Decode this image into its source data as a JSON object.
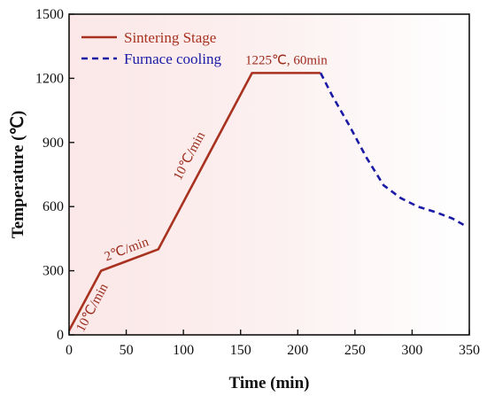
{
  "chart_data": {
    "type": "line",
    "xlabel": "Time (min)",
    "ylabel": "Temperature (℃)",
    "xlim": [
      0,
      350
    ],
    "ylim": [
      0,
      1500
    ],
    "xticks": [
      "0",
      "50",
      "100",
      "150",
      "200",
      "250",
      "300",
      "350"
    ],
    "yticks": [
      "0",
      "300",
      "600",
      "900",
      "1200",
      "1500"
    ],
    "grid": false,
    "legend_position": "top-left",
    "series": [
      {
        "name": "Sintering Stage",
        "color": "#a8321f",
        "style": "solid",
        "x": [
          0,
          28,
          78,
          160,
          220
        ],
        "y": [
          20,
          300,
          400,
          1225,
          1225
        ]
      },
      {
        "name": "Furnace cooling",
        "color": "#1a1aa6",
        "style": "dashed",
        "x": [
          220,
          230,
          245,
          260,
          275,
          290,
          305,
          320,
          335,
          345
        ],
        "y": [
          1225,
          1120,
          980,
          830,
          700,
          640,
          600,
          575,
          545,
          515
        ]
      }
    ],
    "annotations": [
      {
        "text": "10℃/min",
        "x": 14,
        "y": 160
      },
      {
        "text": "2℃/min",
        "x": 53,
        "y": 350
      },
      {
        "text": "10℃/min",
        "x": 119,
        "y": 812
      },
      {
        "text": "1225℃, 60min",
        "x": 190,
        "y": 1225
      }
    ]
  }
}
